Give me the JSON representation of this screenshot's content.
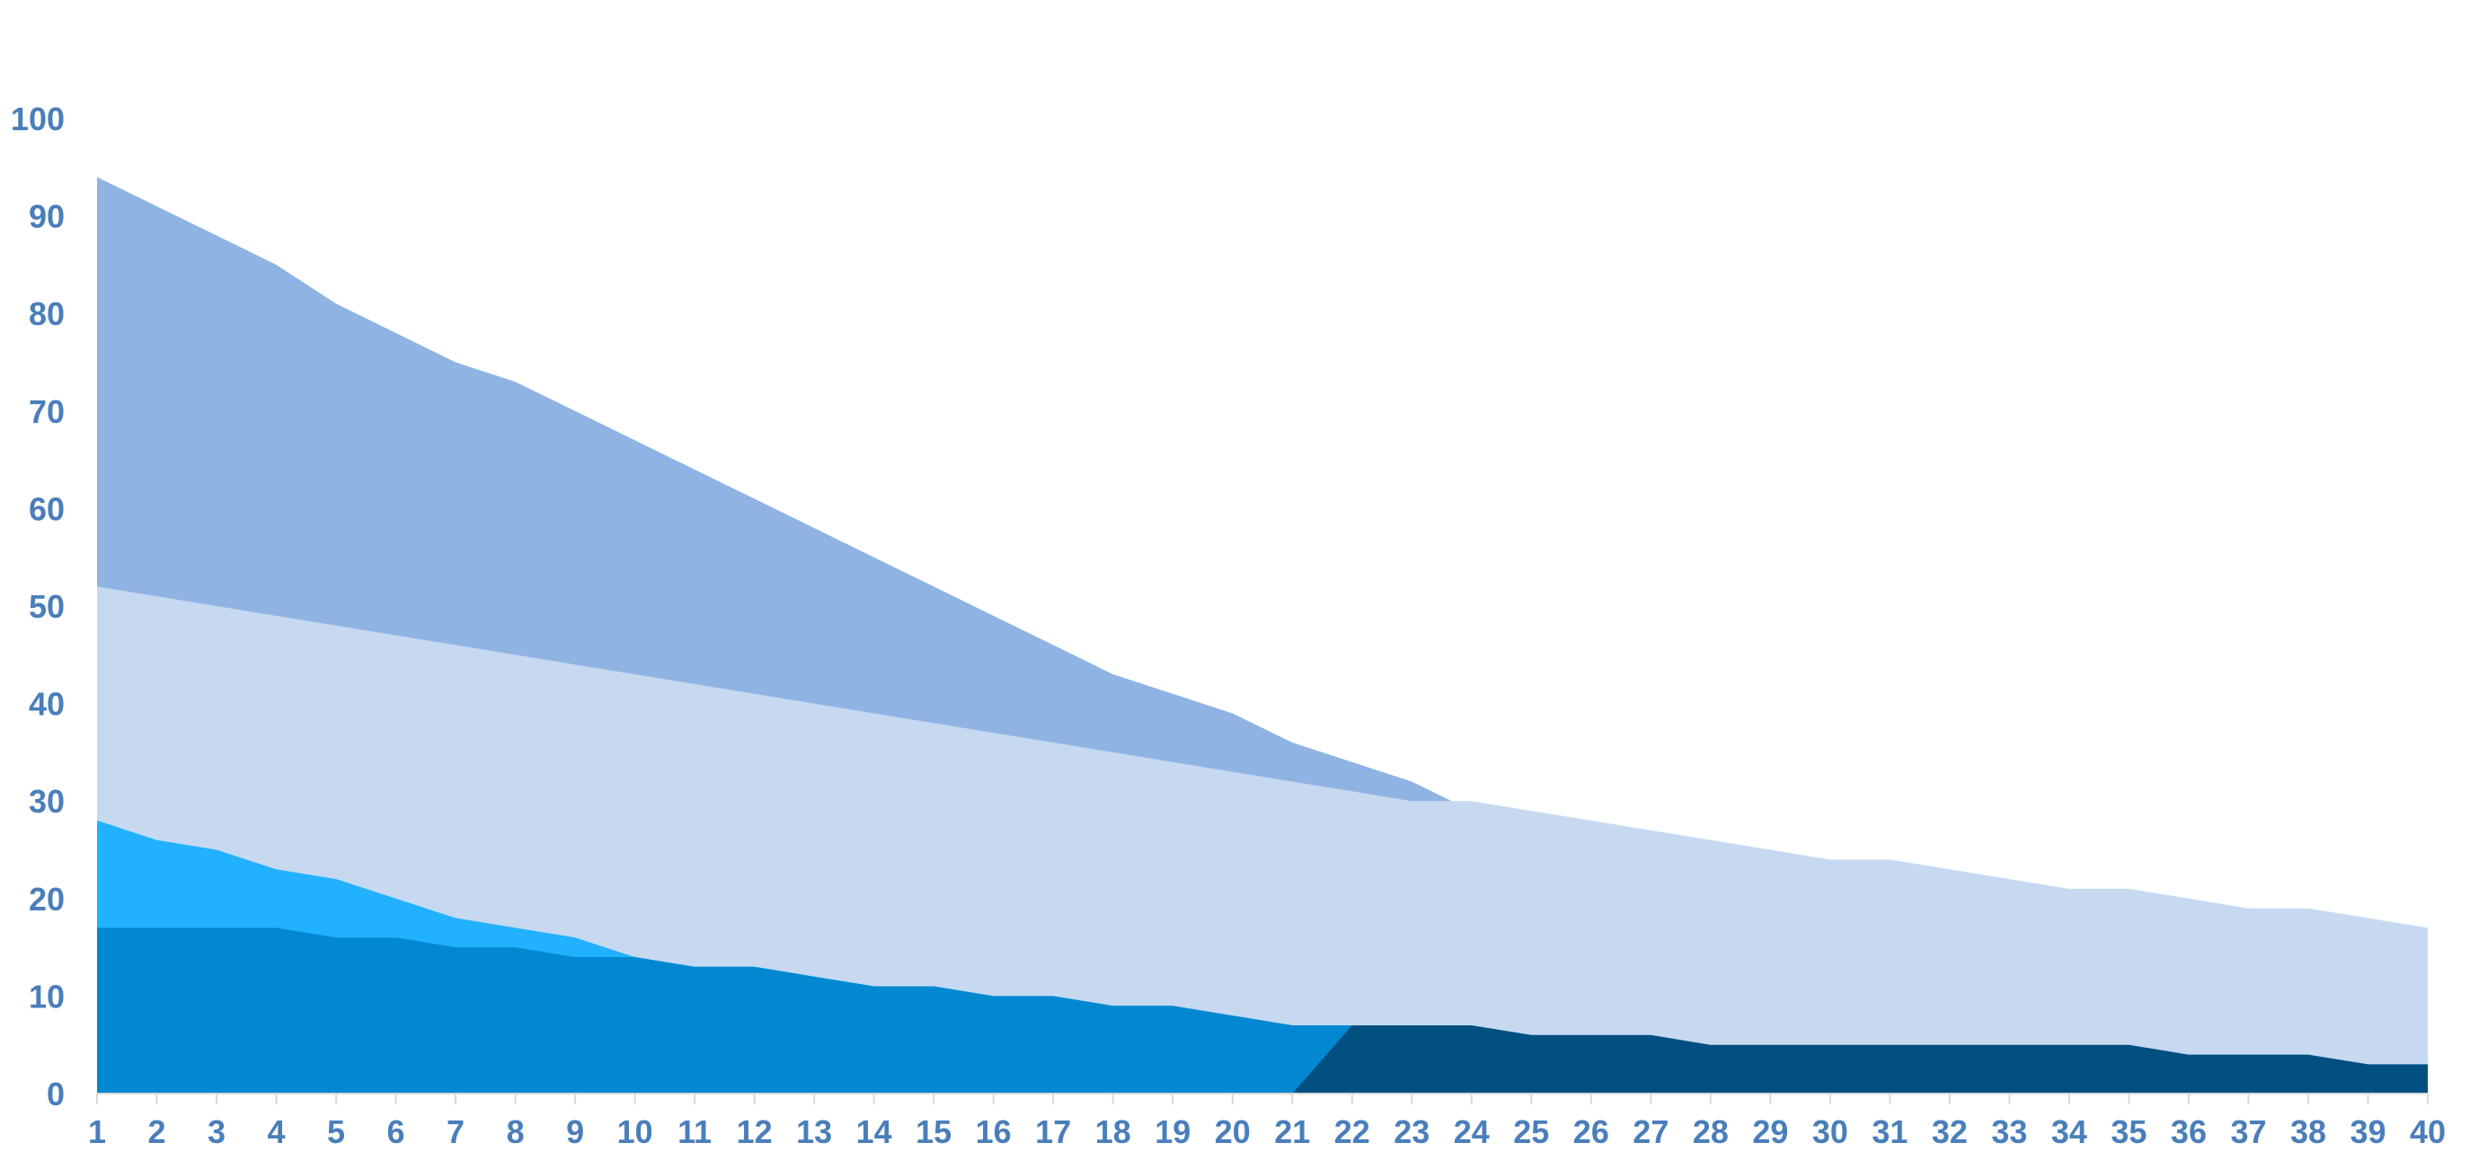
{
  "chart_data": {
    "type": "area",
    "x": [
      1,
      2,
      3,
      4,
      5,
      6,
      7,
      8,
      9,
      10,
      11,
      12,
      13,
      14,
      15,
      16,
      17,
      18,
      19,
      20,
      21,
      22,
      23,
      24,
      25,
      26,
      27,
      28,
      29,
      30,
      31,
      32,
      33,
      34,
      35,
      36,
      37,
      38,
      39,
      40
    ],
    "ylim": [
      0,
      100
    ],
    "yticks": [
      0,
      10,
      20,
      30,
      40,
      50,
      60,
      70,
      80,
      90,
      100
    ],
    "grid": false,
    "legend": "none",
    "title": "",
    "xlabel": "",
    "ylabel": "",
    "series": [
      {
        "color": "#8fb3e3",
        "values": [
          94,
          91,
          88,
          85,
          81,
          78,
          75,
          73,
          70,
          67,
          64,
          61,
          58,
          55,
          52,
          49,
          46,
          43,
          41,
          39,
          36,
          34,
          32,
          29,
          27,
          26,
          24,
          23,
          21,
          20,
          19,
          18,
          17,
          16,
          15,
          14,
          13,
          12,
          11,
          10
        ]
      },
      {
        "color": "#c6d9f1",
        "values": [
          52,
          51,
          50,
          49,
          48,
          47,
          46,
          45,
          44,
          43,
          42,
          41,
          40,
          39,
          38,
          37,
          36,
          35,
          34,
          33,
          32,
          31,
          30,
          30,
          29,
          28,
          27,
          26,
          25,
          24,
          24,
          23,
          22,
          21,
          21,
          20,
          19,
          19,
          18,
          17
        ]
      },
      {
        "color": "#21b1ff",
        "values": [
          28,
          26,
          25,
          23,
          22,
          20,
          18,
          17,
          16,
          14,
          13,
          13,
          12,
          11,
          11,
          10,
          10,
          9,
          9,
          8,
          7,
          6,
          5,
          5,
          4,
          4,
          4,
          3,
          3,
          3,
          3,
          3,
          2,
          2,
          2,
          2,
          2,
          2,
          2,
          2
        ]
      },
      {
        "color": "#0288d1",
        "values": [
          17,
          17,
          17,
          17,
          16,
          16,
          15,
          15,
          14,
          14,
          13,
          13,
          12,
          11,
          11,
          10,
          10,
          9,
          9,
          8,
          7,
          7,
          6,
          5,
          5,
          4,
          4,
          3,
          3,
          3,
          3,
          3,
          2,
          2,
          2,
          2,
          2,
          2,
          2,
          2
        ]
      },
      {
        "color": "#004f81",
        "values": [
          null,
          null,
          null,
          null,
          null,
          null,
          null,
          null,
          null,
          null,
          null,
          null,
          null,
          null,
          null,
          null,
          null,
          null,
          null,
          null,
          0,
          7,
          7,
          7,
          6,
          6,
          6,
          5,
          5,
          5,
          5,
          5,
          5,
          5,
          5,
          4,
          4,
          4,
          3,
          3
        ]
      }
    ]
  }
}
